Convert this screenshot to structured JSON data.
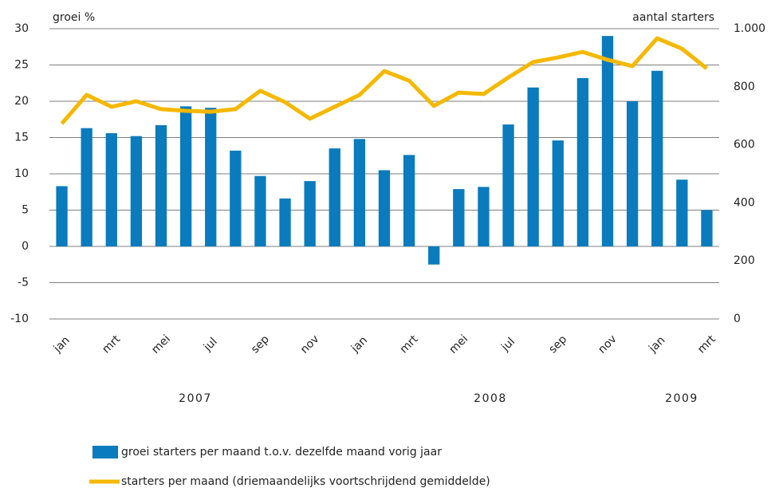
{
  "chart_data": {
    "type": "bar-line",
    "y_label": "groei %",
    "y2_label": "aantal starters",
    "categories": [
      "jan",
      null,
      "mrt",
      null,
      "mei",
      null,
      "jul",
      null,
      "sep",
      null,
      "nov",
      null,
      "jan",
      null,
      "mrt",
      null,
      "mei",
      null,
      "jul",
      null,
      "sep",
      null,
      "nov",
      null,
      "jan",
      null,
      "mrt"
    ],
    "annotations": [
      "2007",
      "2008",
      "2009"
    ],
    "series": [
      {
        "name": "groei starters per maand t.o.v. dezelfde maand vorig jaar",
        "type": "bar",
        "color": "#0a7bbd",
        "values": [
          8.3,
          16.3,
          15.6,
          15.2,
          16.7,
          19.3,
          19.1,
          13.2,
          9.7,
          6.6,
          9.0,
          13.5,
          14.8,
          10.5,
          12.6,
          -2.5,
          7.9,
          8.2,
          16.8,
          21.9,
          14.6,
          23.2,
          29.0,
          20.0,
          24.2,
          9.2,
          5.0
        ]
      },
      {
        "name": "starters per maand (driemaandelijks voortschrijdend  gemiddelde)",
        "type": "line",
        "axis": "y2",
        "color": "#f5b800",
        "values": [
          673,
          772,
          731,
          750,
          723,
          717,
          714,
          723,
          786,
          747,
          690,
          731,
          772,
          854,
          821,
          734,
          780,
          775,
          832,
          885,
          901,
          920,
          893,
          871,
          967,
          931,
          863
        ]
      }
    ],
    "ylim": [
      -10,
      30
    ],
    "yticks": [
      -10,
      -5,
      0,
      5,
      10,
      15,
      20,
      25,
      30
    ],
    "y2lim": [
      0,
      1000
    ],
    "y2ticks": [
      0,
      200,
      400,
      600,
      800,
      {
        "value": 1000,
        "label": "1.000"
      }
    ],
    "grid": true
  }
}
